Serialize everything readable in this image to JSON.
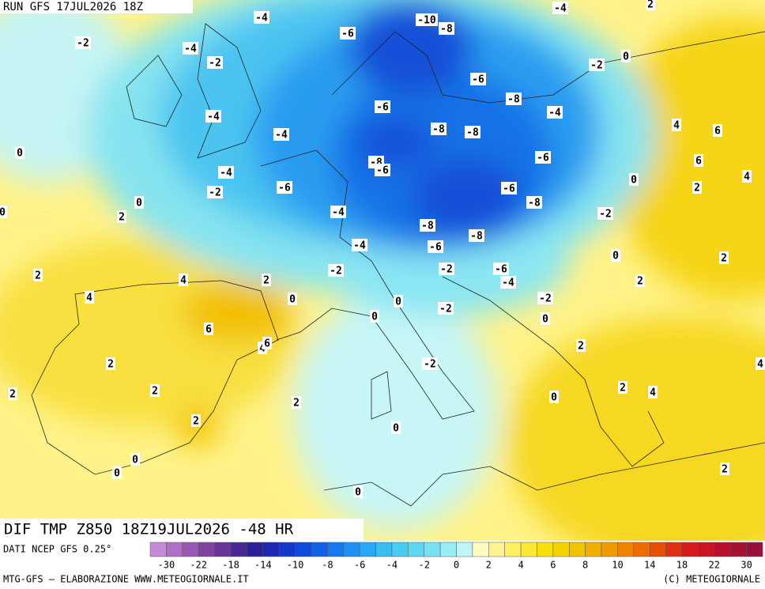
{
  "header": {
    "run": "RUN GFS 17JUL2026 18Z"
  },
  "map": {
    "contour_labels": [
      -4,
      -10,
      -8,
      -4,
      2,
      -2,
      -4,
      -6,
      -2,
      0,
      -2,
      -6,
      -8,
      -6,
      -4,
      -4,
      -8,
      -8,
      4,
      6,
      -4,
      0,
      6,
      -8,
      -6,
      -6,
      -4,
      -6,
      -6,
      0,
      4,
      2,
      -2,
      -8,
      0,
      2,
      -4,
      -2,
      -8,
      -8,
      -4,
      -6,
      2,
      0,
      -2,
      -2,
      -6,
      -4,
      2,
      4,
      2,
      2,
      4,
      0,
      0,
      -2,
      -2,
      0,
      0,
      6,
      4,
      6,
      2,
      2,
      -2,
      4,
      2,
      2,
      2,
      4,
      0,
      2,
      2,
      0,
      0,
      0,
      2,
      0,
      0
    ]
  },
  "footer": {
    "title": "DIF TMP Z850 18Z19JUL2026 -48 HR",
    "source": "DATI NCEP GFS 0.25°",
    "credit": "MTG-GFS — ELABORAZIONE WWW.METEOGIORNALE.IT",
    "copyright": "(C) METEOGIORNALE"
  },
  "colorbar": {
    "colors": [
      "#c58ad8",
      "#b070c8",
      "#9858b4",
      "#8044a0",
      "#6a3496",
      "#4a2894",
      "#2c1f9a",
      "#1c28b4",
      "#1538cc",
      "#1048dc",
      "#1060e8",
      "#1478f0",
      "#1c90f4",
      "#28a8f4",
      "#38bcf2",
      "#48ccf0",
      "#5cd8f0",
      "#78e2f2",
      "#98ecf4",
      "#c0f6f8",
      "#fffcc0",
      "#fff590",
      "#fff060",
      "#fce830",
      "#f8e010",
      "#f4d400",
      "#f0c400",
      "#f0b000",
      "#f09c00",
      "#f08400",
      "#ee6c00",
      "#e85000",
      "#e03010",
      "#d41c1c",
      "#c81424",
      "#b8102c",
      "#a81030",
      "#981038"
    ],
    "ticks": [
      -30,
      -22,
      -18,
      -14,
      -10,
      -8,
      -6,
      -4,
      -2,
      0,
      2,
      4,
      6,
      8,
      10,
      14,
      18,
      22,
      30
    ]
  }
}
